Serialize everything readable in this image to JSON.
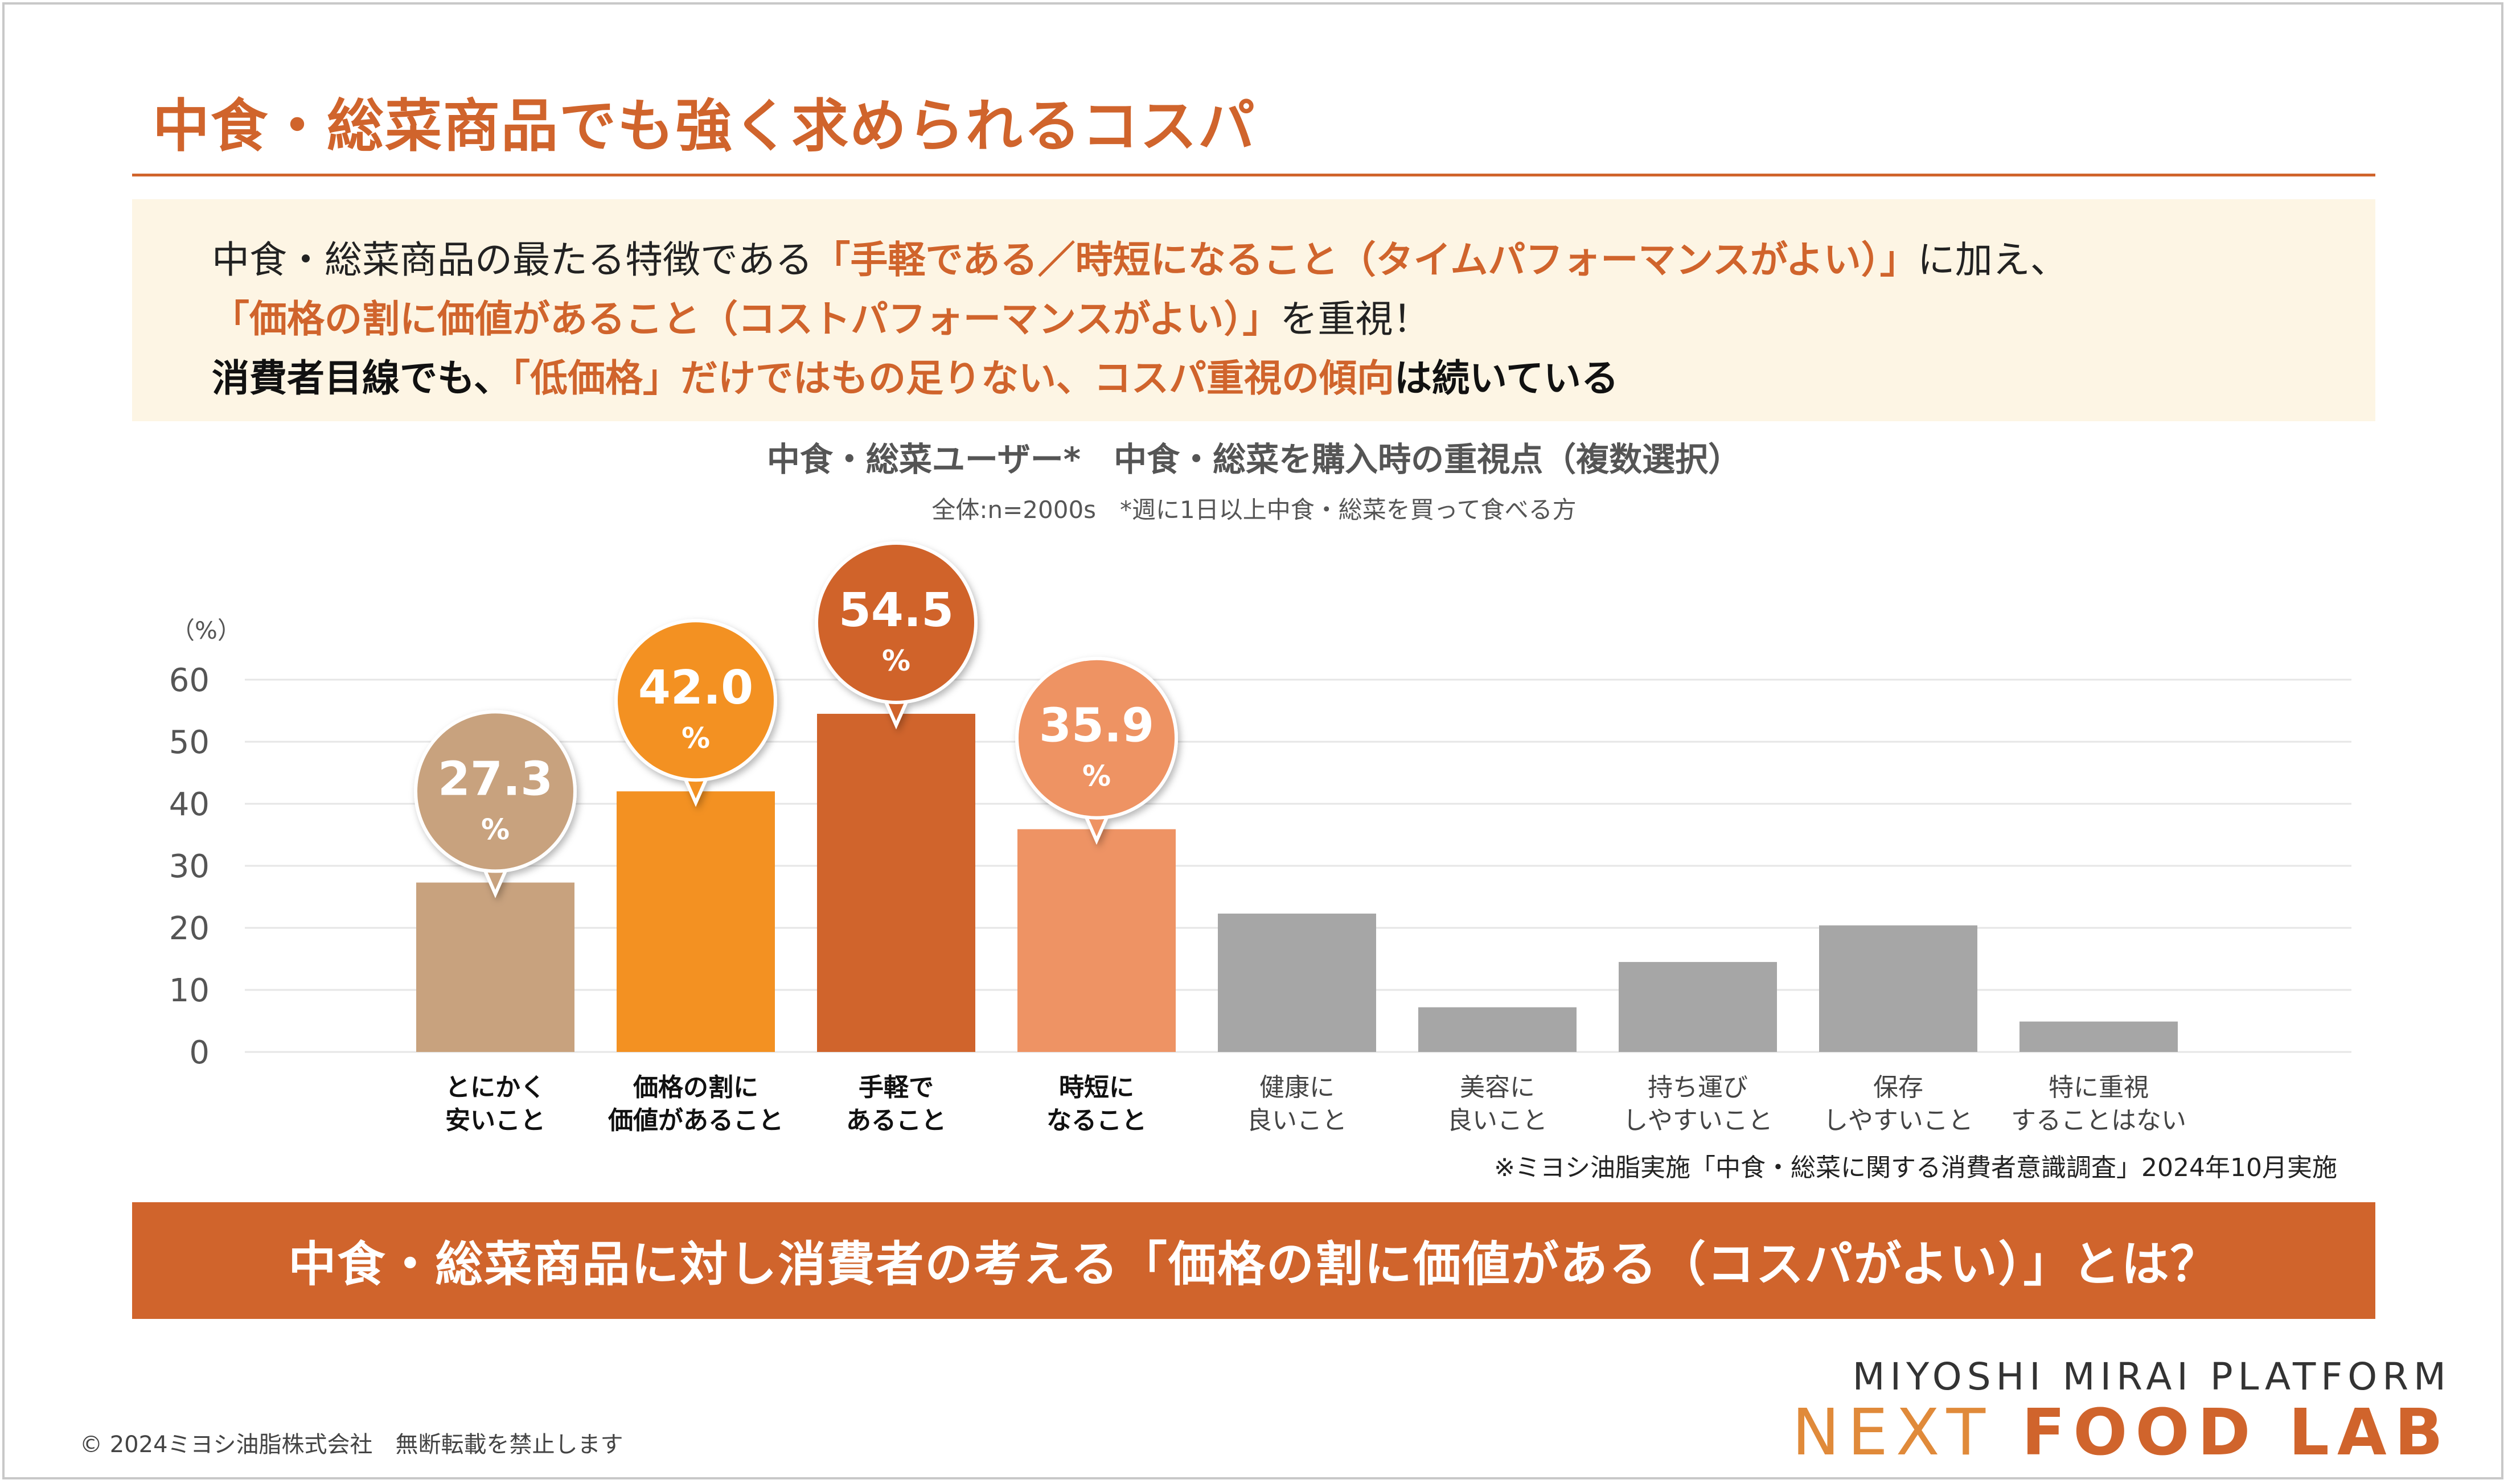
{
  "header": {
    "title": "中食・総菜商品でも強く求められるコスパ"
  },
  "summary": {
    "line1_prefix": "中食・総菜商品の最たる特徴である",
    "line1_highlight": "「手軽である／時短になること（タイムパフォーマンスがよい）」",
    "line1_suffix": "に加え、",
    "line2_highlight": "「価格の割に価値があること（コストパフォーマンスがよい）」",
    "line2_suffix": "を重視！",
    "line3_prefix": "消費者目線でも、",
    "line3_highlight": "「低価格」だけではもの足りない、コスパ重視の傾向",
    "line3_suffix": "は続いている"
  },
  "chart_data": {
    "type": "bar",
    "title": "中食・総菜ユーザー*　中食・総菜を購入時の重視点（複数選択）",
    "subtitle": "全体:n=2000s　*週に1日以上中食・総菜を買って食べる方",
    "ylabel": "（%）",
    "ylim": [
      0,
      60
    ],
    "yticks": [
      0,
      10,
      20,
      30,
      40,
      50,
      60
    ],
    "grid": true,
    "categories": [
      [
        "とにかく",
        "安いこと"
      ],
      [
        "価格の割に",
        "価値があること"
      ],
      [
        "手軽で",
        "あること"
      ],
      [
        "時短に",
        "なること"
      ],
      [
        "健康に",
        "良いこと"
      ],
      [
        "美容に",
        "良いこと"
      ],
      [
        "持ち運び",
        "しやすいこと"
      ],
      [
        "保存",
        "しやすいこと"
      ],
      [
        "特に重視",
        "することはない"
      ]
    ],
    "values": [
      27.3,
      42.0,
      54.5,
      35.9,
      22.3,
      7.2,
      14.5,
      20.4,
      4.9
    ],
    "colors": [
      "#c8a27e",
      "#f39122",
      "#d0642c",
      "#ee9364",
      "#a6a6a6",
      "#a6a6a6",
      "#a6a6a6",
      "#a6a6a6",
      "#a6a6a6"
    ],
    "bold_categories": [
      true,
      true,
      true,
      true,
      false,
      false,
      false,
      false,
      false
    ],
    "callouts": [
      {
        "index": 0,
        "value": "27.3",
        "unit": "%"
      },
      {
        "index": 1,
        "value": "42.0",
        "unit": "%"
      },
      {
        "index": 2,
        "value": "54.5",
        "unit": "%"
      },
      {
        "index": 3,
        "value": "35.9",
        "unit": "%"
      }
    ]
  },
  "source": "※ミヨシ油脂実施「中食・総菜に関する消費者意識調査」2024年10月実施",
  "banner": {
    "text": "中食・総菜商品に対し消費者の考える「価格の割に価値がある（コスパがよい）」とは？"
  },
  "brand": {
    "top": "MIYOSHI MIRAI PLATFORM",
    "main_light": "NEXT",
    "main_bold": "FOOD LAB"
  },
  "footer": {
    "copyright": "© 2024ミヨシ油脂株式会社　無断転載を禁止します"
  }
}
